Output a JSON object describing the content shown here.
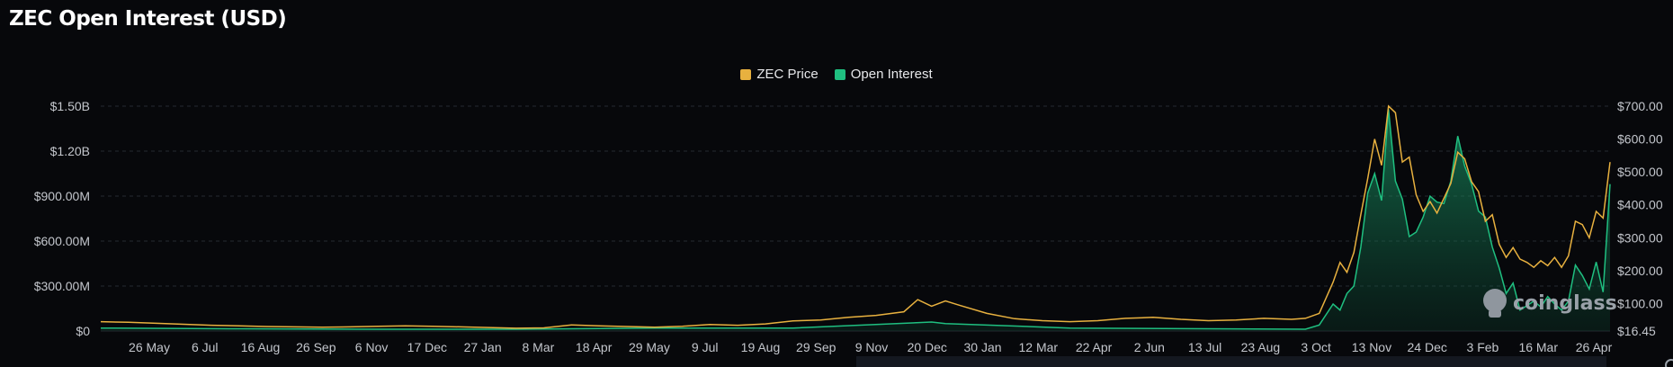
{
  "title": "ZEC Open Interest (USD)",
  "legend": {
    "price_label": "ZEC Price",
    "oi_label": "Open Interest"
  },
  "watermark": "coinglass",
  "colors": {
    "background": "#07080b",
    "price": "#e8b13f",
    "open_interest": "#1fbf80",
    "grid": "#262a31"
  },
  "chart_data": {
    "type": "area",
    "title": "ZEC Open Interest (USD)",
    "x_tick_labels": [
      "26 May",
      "6 Jul",
      "16 Aug",
      "26 Sep",
      "6 Nov",
      "17 Dec",
      "27 Jan",
      "8 Mar",
      "18 Apr",
      "29 May",
      "9 Jul",
      "19 Aug",
      "29 Sep",
      "9 Nov",
      "20 Dec",
      "30 Jan",
      "12 Mar",
      "22 Apr",
      "2 Jun",
      "13 Jul",
      "23 Aug",
      "3 Oct",
      "13 Nov",
      "24 Dec",
      "3 Feb",
      "16 Mar",
      "26 Apr"
    ],
    "y_left": {
      "ticks": [
        0,
        300000000,
        600000000,
        900000000,
        1200000000,
        1500000000
      ],
      "tick_labels": [
        "$0",
        "$300.00M",
        "$600.00M",
        "$900.00M",
        "$1.20B",
        "$1.50B"
      ],
      "range": [
        0,
        1500000000
      ]
    },
    "y_right": {
      "ticks": [
        16.45,
        100,
        200,
        300,
        400,
        500,
        600,
        700
      ],
      "tick_labels": [
        "$16.45",
        "$100.00",
        "$200.00",
        "$300.00",
        "$400.00",
        "$500.00",
        "$600.00",
        "$700.00"
      ],
      "range": [
        16.45,
        700
      ]
    },
    "grid": true,
    "legend_position": "top-center",
    "series": [
      {
        "name": "ZEC Price",
        "axis": "right",
        "style": "line",
        "values": [
          [
            0,
            45
          ],
          [
            2,
            43
          ],
          [
            4,
            40
          ],
          [
            6,
            37
          ],
          [
            8,
            34
          ],
          [
            10,
            32
          ],
          [
            12,
            30
          ],
          [
            14,
            29
          ],
          [
            16,
            28
          ],
          [
            18,
            29
          ],
          [
            20,
            31
          ],
          [
            22,
            32
          ],
          [
            24,
            31
          ],
          [
            26,
            29
          ],
          [
            28,
            27
          ],
          [
            30,
            25
          ],
          [
            32,
            26
          ],
          [
            34,
            35
          ],
          [
            36,
            32
          ],
          [
            38,
            30
          ],
          [
            40,
            28
          ],
          [
            42,
            31
          ],
          [
            44,
            36
          ],
          [
            46,
            34
          ],
          [
            48,
            38
          ],
          [
            50,
            47
          ],
          [
            52,
            50
          ],
          [
            54,
            58
          ],
          [
            56,
            64
          ],
          [
            58,
            75
          ],
          [
            59,
            112
          ],
          [
            60,
            92
          ],
          [
            61,
            108
          ],
          [
            62,
            95
          ],
          [
            64,
            70
          ],
          [
            66,
            54
          ],
          [
            68,
            48
          ],
          [
            70,
            45
          ],
          [
            72,
            48
          ],
          [
            74,
            55
          ],
          [
            76,
            58
          ],
          [
            78,
            52
          ],
          [
            80,
            48
          ],
          [
            82,
            50
          ],
          [
            84,
            55
          ],
          [
            86,
            52
          ],
          [
            87,
            55
          ],
          [
            88,
            70
          ],
          [
            89,
            165
          ],
          [
            89.5,
            225
          ],
          [
            90,
            195
          ],
          [
            90.5,
            255
          ],
          [
            91,
            370
          ],
          [
            91.5,
            480
          ],
          [
            92,
            600
          ],
          [
            92.5,
            520
          ],
          [
            93,
            700
          ],
          [
            93.5,
            680
          ],
          [
            94,
            530
          ],
          [
            94.5,
            545
          ],
          [
            95,
            430
          ],
          [
            95.5,
            380
          ],
          [
            96,
            410
          ],
          [
            96.5,
            375
          ],
          [
            97,
            420
          ],
          [
            97.5,
            465
          ],
          [
            98,
            560
          ],
          [
            98.5,
            540
          ],
          [
            99,
            470
          ],
          [
            99.5,
            440
          ],
          [
            100,
            350
          ],
          [
            100.5,
            370
          ],
          [
            101,
            280
          ],
          [
            101.5,
            240
          ],
          [
            102,
            270
          ],
          [
            102.5,
            235
          ],
          [
            103,
            225
          ],
          [
            103.5,
            210
          ],
          [
            104,
            230
          ],
          [
            104.5,
            215
          ],
          [
            105,
            240
          ],
          [
            105.5,
            210
          ],
          [
            106,
            245
          ],
          [
            106.5,
            350
          ],
          [
            107,
            340
          ],
          [
            107.5,
            300
          ],
          [
            108,
            380
          ],
          [
            108.5,
            360
          ],
          [
            109,
            530
          ]
        ]
      },
      {
        "name": "Open Interest",
        "axis": "left",
        "style": "area",
        "values": [
          [
            0,
            20000000
          ],
          [
            10,
            15000000
          ],
          [
            20,
            12000000
          ],
          [
            30,
            12000000
          ],
          [
            40,
            20000000
          ],
          [
            50,
            20000000
          ],
          [
            60,
            60000000
          ],
          [
            61,
            50000000
          ],
          [
            70,
            20000000
          ],
          [
            80,
            15000000
          ],
          [
            87,
            12000000
          ],
          [
            88,
            40000000
          ],
          [
            89,
            180000000
          ],
          [
            89.5,
            140000000
          ],
          [
            90,
            250000000
          ],
          [
            90.5,
            300000000
          ],
          [
            91,
            560000000
          ],
          [
            91.5,
            920000000
          ],
          [
            92,
            1050000000
          ],
          [
            92.5,
            870000000
          ],
          [
            93,
            1480000000
          ],
          [
            93.5,
            1000000000
          ],
          [
            94,
            880000000
          ],
          [
            94.5,
            630000000
          ],
          [
            95,
            660000000
          ],
          [
            95.5,
            760000000
          ],
          [
            96,
            900000000
          ],
          [
            96.5,
            860000000
          ],
          [
            97,
            850000000
          ],
          [
            97.5,
            1000000000
          ],
          [
            98,
            1300000000
          ],
          [
            98.5,
            1100000000
          ],
          [
            99,
            980000000
          ],
          [
            99.5,
            800000000
          ],
          [
            100,
            760000000
          ],
          [
            100.5,
            560000000
          ],
          [
            101,
            420000000
          ],
          [
            101.5,
            250000000
          ],
          [
            102,
            320000000
          ],
          [
            102.5,
            140000000
          ],
          [
            103,
            170000000
          ],
          [
            103.5,
            200000000
          ],
          [
            104,
            160000000
          ],
          [
            104.5,
            230000000
          ],
          [
            105,
            180000000
          ],
          [
            105.5,
            140000000
          ],
          [
            106,
            200000000
          ],
          [
            106.5,
            440000000
          ],
          [
            107,
            370000000
          ],
          [
            107.5,
            280000000
          ],
          [
            108,
            460000000
          ],
          [
            108.5,
            260000000
          ],
          [
            109,
            980000000
          ]
        ]
      }
    ]
  }
}
